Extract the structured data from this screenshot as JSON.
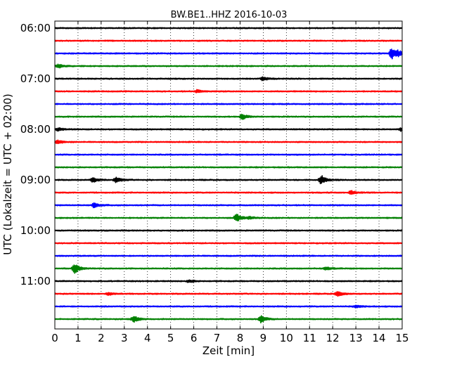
{
  "chart_data": {
    "type": "line",
    "subtype": "seismogram-helicorder",
    "title": "BW.BE1..HHZ 2016-10-03",
    "xlabel": "Zeit  [min]",
    "ylabel": "UTC (Lokalzeit = UTC + 02:00)",
    "xlim": [
      0,
      15
    ],
    "x_ticks": [
      "0",
      "1",
      "2",
      "3",
      "4",
      "5",
      "6",
      "7",
      "8",
      "9",
      "10",
      "11",
      "12",
      "13",
      "14",
      "15"
    ],
    "grid": "vertical-dotted",
    "y_tick_labels": [
      "06:00",
      "07:00",
      "08:00",
      "09:00",
      "10:00",
      "11:00"
    ],
    "colors": [
      "#000000",
      "#ff0000",
      "#0000ff",
      "#008000"
    ],
    "traces": [
      {
        "start": "06:00",
        "color": "#000000",
        "events": []
      },
      {
        "start": "06:15",
        "color": "#ff0000",
        "events": []
      },
      {
        "start": "06:30",
        "color": "#0000ff",
        "events": [
          {
            "t": 14.55,
            "amp": 1.8
          },
          {
            "t": 14.8,
            "amp": 0.7
          }
        ]
      },
      {
        "start": "06:45",
        "color": "#008000",
        "events": [
          {
            "t": 0.15,
            "amp": 0.6
          }
        ]
      },
      {
        "start": "07:00",
        "color": "#000000",
        "events": [
          {
            "t": 9.0,
            "amp": 0.6
          }
        ]
      },
      {
        "start": "07:15",
        "color": "#ff0000",
        "events": [
          {
            "t": 6.15,
            "amp": 0.5
          }
        ]
      },
      {
        "start": "07:30",
        "color": "#0000ff",
        "events": []
      },
      {
        "start": "07:45",
        "color": "#008000",
        "events": [
          {
            "t": 8.1,
            "amp": 0.9
          }
        ]
      },
      {
        "start": "08:00",
        "color": "#000000",
        "events": [
          {
            "t": 0.15,
            "amp": 0.5
          },
          {
            "t": 14.95,
            "amp": 0.5
          }
        ]
      },
      {
        "start": "08:15",
        "color": "#ff0000",
        "events": [
          {
            "t": 0.1,
            "amp": 0.6
          }
        ]
      },
      {
        "start": "08:30",
        "color": "#0000ff",
        "events": []
      },
      {
        "start": "08:45",
        "color": "#008000",
        "events": []
      },
      {
        "start": "09:00",
        "color": "#000000",
        "events": [
          {
            "t": 1.65,
            "amp": 0.8
          },
          {
            "t": 2.65,
            "amp": 0.9
          },
          {
            "t": 11.5,
            "amp": 1.5
          }
        ]
      },
      {
        "start": "09:15",
        "color": "#ff0000",
        "events": [
          {
            "t": 12.8,
            "amp": 0.6
          }
        ]
      },
      {
        "start": "09:30",
        "color": "#0000ff",
        "events": [
          {
            "t": 1.7,
            "amp": 0.8
          }
        ]
      },
      {
        "start": "09:45",
        "color": "#008000",
        "events": [
          {
            "t": 7.85,
            "amp": 1.3
          },
          {
            "t": 8.4,
            "amp": 0.4
          }
        ]
      },
      {
        "start": "10:00",
        "color": "#000000",
        "events": []
      },
      {
        "start": "10:15",
        "color": "#ff0000",
        "events": []
      },
      {
        "start": "10:30",
        "color": "#0000ff",
        "events": []
      },
      {
        "start": "10:45",
        "color": "#008000",
        "events": [
          {
            "t": 0.85,
            "amp": 1.6
          },
          {
            "t": 11.7,
            "amp": 0.5
          }
        ]
      },
      {
        "start": "11:00",
        "color": "#000000",
        "events": [
          {
            "t": 5.8,
            "amp": 0.4
          }
        ]
      },
      {
        "start": "11:15",
        "color": "#ff0000",
        "events": [
          {
            "t": 2.3,
            "amp": 0.4
          },
          {
            "t": 12.2,
            "amp": 0.8
          }
        ]
      },
      {
        "start": "11:30",
        "color": "#0000ff",
        "events": [
          {
            "t": 13.0,
            "amp": 0.4
          }
        ]
      },
      {
        "start": "11:45",
        "color": "#008000",
        "events": [
          {
            "t": 3.4,
            "amp": 1.0
          },
          {
            "t": 8.9,
            "amp": 1.2
          }
        ]
      }
    ]
  }
}
